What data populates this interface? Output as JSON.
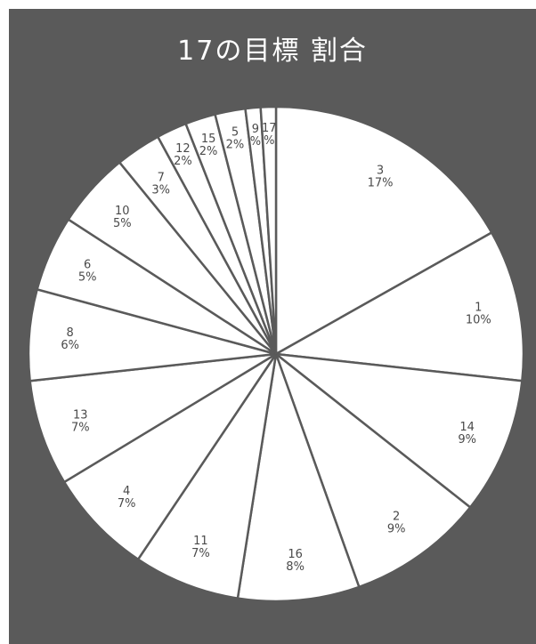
{
  "chart_data": {
    "type": "pie",
    "title": "17の目標 割合",
    "categories": [
      "3",
      "1",
      "14",
      "2",
      "16",
      "11",
      "4",
      "13",
      "8",
      "6",
      "10",
      "7",
      "12",
      "15",
      "5",
      "9",
      "17"
    ],
    "values": [
      17,
      10,
      9,
      9,
      8,
      7,
      7,
      7,
      6,
      5,
      5,
      3,
      2,
      2,
      2,
      1,
      1
    ],
    "percent_labels": [
      "17%",
      "10%",
      "9%",
      "9%",
      "8%",
      "7%",
      "7%",
      "7%",
      "6%",
      "5%",
      "5%",
      "3%",
      "2%",
      "2%",
      "2%",
      "%",
      "%"
    ],
    "start_angle": "12 o'clock",
    "direction": "clockwise"
  },
  "colors": {
    "background": "#5a5a5a",
    "slice_fill": "#ffffff",
    "slice_border": "#5a5a5a",
    "label_text": "#4a4a4a",
    "title_text": "#ffffff"
  }
}
